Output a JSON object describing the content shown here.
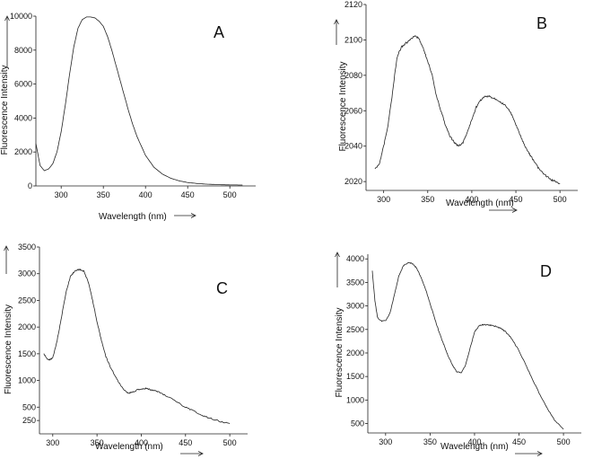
{
  "chart_data": [
    {
      "type": "line",
      "panel": "A",
      "xlabel": "Wavelength (nm)",
      "ylabel": "Fluorescence Intensity",
      "xlim": [
        270,
        520
      ],
      "ylim": [
        0,
        10000
      ],
      "xticks": [
        300,
        350,
        400,
        450,
        500
      ],
      "yticks": [
        0,
        2000,
        4000,
        6000,
        8000,
        10000
      ],
      "series": [
        {
          "name": "A",
          "x": [
            270,
            275,
            280,
            285,
            290,
            295,
            300,
            305,
            310,
            315,
            320,
            325,
            330,
            335,
            340,
            345,
            350,
            355,
            360,
            365,
            370,
            375,
            380,
            385,
            390,
            400,
            410,
            420,
            430,
            440,
            450,
            460,
            470,
            480,
            490,
            500,
            510,
            515
          ],
          "y": [
            2500,
            1200,
            900,
            1000,
            1300,
            2000,
            3200,
            4800,
            6600,
            8200,
            9300,
            9800,
            9950,
            9950,
            9900,
            9700,
            9400,
            8800,
            8000,
            7100,
            6200,
            5300,
            4400,
            3600,
            2900,
            1800,
            1100,
            700,
            450,
            300,
            200,
            150,
            110,
            90,
            70,
            60,
            55,
            50
          ]
        }
      ]
    },
    {
      "type": "line",
      "panel": "B",
      "xlabel": "Wavelength (nm)",
      "ylabel": "Fluorescence Intensity",
      "xlim": [
        280,
        510
      ],
      "ylim": [
        2015,
        2120
      ],
      "xticks": [
        300,
        350,
        400,
        450,
        500
      ],
      "yticks": [
        2020,
        2040,
        2060,
        2080,
        2100,
        2120
      ],
      "series": [
        {
          "name": "B",
          "x": [
            290,
            295,
            300,
            305,
            310,
            315,
            320,
            325,
            330,
            335,
            340,
            345,
            350,
            355,
            360,
            365,
            370,
            375,
            380,
            385,
            390,
            395,
            400,
            405,
            410,
            415,
            420,
            425,
            430,
            435,
            440,
            445,
            450,
            455,
            460,
            465,
            470,
            475,
            480,
            485,
            490,
            495,
            500
          ],
          "y": [
            2027,
            2030,
            2040,
            2052,
            2070,
            2090,
            2096,
            2098,
            2100,
            2102,
            2101,
            2095,
            2088,
            2080,
            2068,
            2060,
            2052,
            2046,
            2042,
            2040,
            2042,
            2048,
            2055,
            2062,
            2066,
            2068,
            2068,
            2067,
            2066,
            2064,
            2062,
            2058,
            2052,
            2046,
            2040,
            2036,
            2032,
            2028,
            2025,
            2023,
            2021,
            2020,
            2019
          ]
        }
      ]
    },
    {
      "type": "line",
      "panel": "C",
      "xlabel": "Wavelength (nm)",
      "ylabel": "Fluorescence Intensity",
      "xlim": [
        285,
        510
      ],
      "ylim": [
        0,
        3500
      ],
      "xticks": [
        300,
        350,
        400,
        450,
        500
      ],
      "yticks": [
        250,
        500,
        1000,
        1500,
        2000,
        2500,
        3000,
        3500
      ],
      "series": [
        {
          "name": "C",
          "x": [
            290,
            295,
            300,
            305,
            310,
            315,
            320,
            325,
            330,
            335,
            340,
            345,
            350,
            355,
            360,
            365,
            370,
            375,
            380,
            385,
            390,
            395,
            400,
            405,
            410,
            415,
            420,
            430,
            440,
            450,
            460,
            470,
            480,
            490,
            500
          ],
          "y": [
            1500,
            1380,
            1420,
            1750,
            2200,
            2650,
            2950,
            3050,
            3080,
            3050,
            2850,
            2500,
            2100,
            1750,
            1450,
            1250,
            1100,
            950,
            840,
            760,
            780,
            820,
            840,
            850,
            830,
            810,
            780,
            700,
            600,
            500,
            420,
            340,
            280,
            230,
            190
          ]
        }
      ]
    },
    {
      "type": "line",
      "panel": "D",
      "xlabel": "Wavelength (nm)",
      "ylabel": "Fluorescence Intensity",
      "xlim": [
        280,
        510
      ],
      "ylim": [
        300,
        4100
      ],
      "xticks": [
        300,
        350,
        400,
        450,
        500
      ],
      "yticks": [
        500,
        1000,
        1500,
        2000,
        2500,
        3000,
        3500,
        4000
      ],
      "series": [
        {
          "name": "D",
          "x": [
            285,
            288,
            291,
            295,
            300,
            305,
            310,
            315,
            320,
            325,
            330,
            335,
            340,
            345,
            350,
            355,
            360,
            365,
            370,
            375,
            380,
            385,
            390,
            395,
            400,
            405,
            410,
            415,
            420,
            425,
            430,
            435,
            440,
            450,
            460,
            470,
            480,
            490,
            500
          ],
          "y": [
            3750,
            3100,
            2750,
            2680,
            2690,
            2850,
            3250,
            3650,
            3850,
            3920,
            3900,
            3800,
            3600,
            3350,
            3050,
            2750,
            2450,
            2200,
            1950,
            1750,
            1600,
            1580,
            1750,
            2100,
            2450,
            2580,
            2600,
            2600,
            2580,
            2560,
            2520,
            2450,
            2350,
            2050,
            1650,
            1250,
            880,
            570,
            380
          ]
        }
      ]
    }
  ]
}
